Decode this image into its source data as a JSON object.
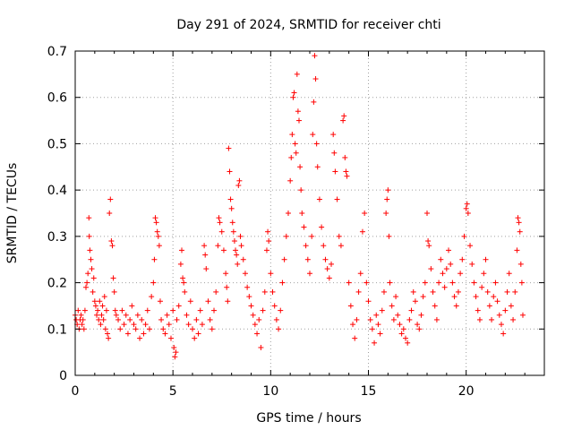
{
  "chart_data": {
    "type": "scatter",
    "title": "Day 291 of 2024, SRMTID for receiver chti",
    "xlabel": "GPS time / hours",
    "ylabel": "SRMTID / TECUs",
    "xlim": [
      0,
      24
    ],
    "ylim": [
      0,
      0.7
    ],
    "xticks": [
      0,
      5,
      10,
      15,
      20
    ],
    "xtick_labels": [
      "0",
      "5",
      "10",
      "15",
      "20"
    ],
    "yticks": [
      0,
      0.1,
      0.2,
      0.3,
      0.4,
      0.5,
      0.6,
      0.7
    ],
    "ytick_labels": [
      "0",
      "0.1",
      "0.2",
      "0.3",
      "0.4",
      "0.5",
      "0.6",
      "0.7"
    ],
    "grid": true,
    "marker": "+",
    "color": "#ff0000",
    "series": [
      {
        "name": "SRMTID",
        "points": [
          [
            0.0,
            0.13
          ],
          [
            0.05,
            0.12
          ],
          [
            0.1,
            0.11
          ],
          [
            0.15,
            0.14
          ],
          [
            0.2,
            0.1
          ],
          [
            0.25,
            0.12
          ],
          [
            0.3,
            0.13
          ],
          [
            0.35,
            0.11
          ],
          [
            0.4,
            0.12
          ],
          [
            0.45,
            0.1
          ],
          [
            0.5,
            0.14
          ],
          [
            0.55,
            0.19
          ],
          [
            0.6,
            0.2
          ],
          [
            0.65,
            0.22
          ],
          [
            0.7,
            0.34
          ],
          [
            0.72,
            0.3
          ],
          [
            0.75,
            0.27
          ],
          [
            0.8,
            0.25
          ],
          [
            0.85,
            0.23
          ],
          [
            0.9,
            0.18
          ],
          [
            0.95,
            0.21
          ],
          [
            1.0,
            0.16
          ],
          [
            1.05,
            0.15
          ],
          [
            1.1,
            0.13
          ],
          [
            1.15,
            0.14
          ],
          [
            1.2,
            0.12
          ],
          [
            1.25,
            0.16
          ],
          [
            1.3,
            0.11
          ],
          [
            1.35,
            0.13
          ],
          [
            1.4,
            0.15
          ],
          [
            1.45,
            0.12
          ],
          [
            1.5,
            0.17
          ],
          [
            1.55,
            0.1
          ],
          [
            1.6,
            0.14
          ],
          [
            1.65,
            0.09
          ],
          [
            1.7,
            0.08
          ],
          [
            1.75,
            0.35
          ],
          [
            1.8,
            0.38
          ],
          [
            1.85,
            0.29
          ],
          [
            1.9,
            0.28
          ],
          [
            1.95,
            0.21
          ],
          [
            2.0,
            0.18
          ],
          [
            2.05,
            0.14
          ],
          [
            2.1,
            0.13
          ],
          [
            2.2,
            0.12
          ],
          [
            2.3,
            0.1
          ],
          [
            2.4,
            0.14
          ],
          [
            2.5,
            0.11
          ],
          [
            2.6,
            0.13
          ],
          [
            2.7,
            0.09
          ],
          [
            2.8,
            0.12
          ],
          [
            2.9,
            0.15
          ],
          [
            3.0,
            0.11
          ],
          [
            3.1,
            0.1
          ],
          [
            3.2,
            0.13
          ],
          [
            3.3,
            0.08
          ],
          [
            3.4,
            0.12
          ],
          [
            3.5,
            0.09
          ],
          [
            3.6,
            0.11
          ],
          [
            3.7,
            0.14
          ],
          [
            3.8,
            0.1
          ],
          [
            3.9,
            0.17
          ],
          [
            4.0,
            0.2
          ],
          [
            4.05,
            0.25
          ],
          [
            4.1,
            0.34
          ],
          [
            4.15,
            0.33
          ],
          [
            4.2,
            0.31
          ],
          [
            4.25,
            0.3
          ],
          [
            4.3,
            0.28
          ],
          [
            4.35,
            0.16
          ],
          [
            4.4,
            0.12
          ],
          [
            4.5,
            0.1
          ],
          [
            4.6,
            0.09
          ],
          [
            4.7,
            0.13
          ],
          [
            4.8,
            0.11
          ],
          [
            4.9,
            0.08
          ],
          [
            5.0,
            0.14
          ],
          [
            5.05,
            0.06
          ],
          [
            5.1,
            0.04
          ],
          [
            5.15,
            0.05
          ],
          [
            5.2,
            0.12
          ],
          [
            5.3,
            0.15
          ],
          [
            5.4,
            0.24
          ],
          [
            5.45,
            0.27
          ],
          [
            5.5,
            0.21
          ],
          [
            5.55,
            0.2
          ],
          [
            5.6,
            0.18
          ],
          [
            5.7,
            0.13
          ],
          [
            5.8,
            0.11
          ],
          [
            5.9,
            0.16
          ],
          [
            6.0,
            0.1
          ],
          [
            6.1,
            0.08
          ],
          [
            6.2,
            0.12
          ],
          [
            6.3,
            0.09
          ],
          [
            6.4,
            0.14
          ],
          [
            6.5,
            0.11
          ],
          [
            6.6,
            0.28
          ],
          [
            6.65,
            0.26
          ],
          [
            6.7,
            0.23
          ],
          [
            6.8,
            0.16
          ],
          [
            6.9,
            0.12
          ],
          [
            7.0,
            0.1
          ],
          [
            7.1,
            0.14
          ],
          [
            7.2,
            0.18
          ],
          [
            7.3,
            0.28
          ],
          [
            7.35,
            0.34
          ],
          [
            7.4,
            0.33
          ],
          [
            7.5,
            0.31
          ],
          [
            7.6,
            0.27
          ],
          [
            7.7,
            0.22
          ],
          [
            7.75,
            0.19
          ],
          [
            7.8,
            0.16
          ],
          [
            7.85,
            0.49
          ],
          [
            7.9,
            0.44
          ],
          [
            7.95,
            0.38
          ],
          [
            8.0,
            0.36
          ],
          [
            8.05,
            0.33
          ],
          [
            8.1,
            0.31
          ],
          [
            8.15,
            0.29
          ],
          [
            8.2,
            0.27
          ],
          [
            8.25,
            0.26
          ],
          [
            8.3,
            0.24
          ],
          [
            8.35,
            0.41
          ],
          [
            8.4,
            0.42
          ],
          [
            8.45,
            0.3
          ],
          [
            8.5,
            0.28
          ],
          [
            8.6,
            0.25
          ],
          [
            8.7,
            0.22
          ],
          [
            8.8,
            0.19
          ],
          [
            8.9,
            0.17
          ],
          [
            9.0,
            0.15
          ],
          [
            9.1,
            0.13
          ],
          [
            9.2,
            0.11
          ],
          [
            9.3,
            0.09
          ],
          [
            9.4,
            0.12
          ],
          [
            9.5,
            0.06
          ],
          [
            9.6,
            0.14
          ],
          [
            9.7,
            0.18
          ],
          [
            9.8,
            0.27
          ],
          [
            9.85,
            0.31
          ],
          [
            9.9,
            0.29
          ],
          [
            10.0,
            0.22
          ],
          [
            10.1,
            0.18
          ],
          [
            10.2,
            0.15
          ],
          [
            10.3,
            0.12
          ],
          [
            10.4,
            0.1
          ],
          [
            10.5,
            0.14
          ],
          [
            10.6,
            0.2
          ],
          [
            10.7,
            0.25
          ],
          [
            10.8,
            0.3
          ],
          [
            10.9,
            0.35
          ],
          [
            11.0,
            0.42
          ],
          [
            11.05,
            0.47
          ],
          [
            11.1,
            0.52
          ],
          [
            11.15,
            0.6
          ],
          [
            11.2,
            0.61
          ],
          [
            11.25,
            0.5
          ],
          [
            11.3,
            0.48
          ],
          [
            11.35,
            0.65
          ],
          [
            11.4,
            0.57
          ],
          [
            11.45,
            0.55
          ],
          [
            11.5,
            0.45
          ],
          [
            11.55,
            0.4
          ],
          [
            11.6,
            0.35
          ],
          [
            11.7,
            0.32
          ],
          [
            11.8,
            0.28
          ],
          [
            11.9,
            0.25
          ],
          [
            12.0,
            0.22
          ],
          [
            12.1,
            0.3
          ],
          [
            12.15,
            0.52
          ],
          [
            12.2,
            0.59
          ],
          [
            12.25,
            0.69
          ],
          [
            12.3,
            0.64
          ],
          [
            12.35,
            0.5
          ],
          [
            12.4,
            0.45
          ],
          [
            12.5,
            0.38
          ],
          [
            12.6,
            0.32
          ],
          [
            12.7,
            0.28
          ],
          [
            12.8,
            0.25
          ],
          [
            12.9,
            0.23
          ],
          [
            13.0,
            0.21
          ],
          [
            13.1,
            0.24
          ],
          [
            13.2,
            0.52
          ],
          [
            13.25,
            0.48
          ],
          [
            13.3,
            0.44
          ],
          [
            13.4,
            0.38
          ],
          [
            13.5,
            0.3
          ],
          [
            13.6,
            0.28
          ],
          [
            13.7,
            0.55
          ],
          [
            13.75,
            0.56
          ],
          [
            13.8,
            0.47
          ],
          [
            13.85,
            0.44
          ],
          [
            13.9,
            0.43
          ],
          [
            14.0,
            0.2
          ],
          [
            14.1,
            0.15
          ],
          [
            14.2,
            0.11
          ],
          [
            14.3,
            0.08
          ],
          [
            14.4,
            0.12
          ],
          [
            14.5,
            0.18
          ],
          [
            14.6,
            0.22
          ],
          [
            14.7,
            0.31
          ],
          [
            14.8,
            0.35
          ],
          [
            14.9,
            0.2
          ],
          [
            15.0,
            0.16
          ],
          [
            15.1,
            0.12
          ],
          [
            15.2,
            0.1
          ],
          [
            15.3,
            0.07
          ],
          [
            15.4,
            0.13
          ],
          [
            15.5,
            0.11
          ],
          [
            15.6,
            0.09
          ],
          [
            15.7,
            0.14
          ],
          [
            15.8,
            0.18
          ],
          [
            15.9,
            0.35
          ],
          [
            15.95,
            0.38
          ],
          [
            16.0,
            0.4
          ],
          [
            16.05,
            0.3
          ],
          [
            16.1,
            0.2
          ],
          [
            16.2,
            0.15
          ],
          [
            16.3,
            0.12
          ],
          [
            16.4,
            0.17
          ],
          [
            16.5,
            0.13
          ],
          [
            16.6,
            0.11
          ],
          [
            16.7,
            0.09
          ],
          [
            16.8,
            0.1
          ],
          [
            16.9,
            0.08
          ],
          [
            17.0,
            0.07
          ],
          [
            17.1,
            0.12
          ],
          [
            17.2,
            0.14
          ],
          [
            17.3,
            0.18
          ],
          [
            17.4,
            0.16
          ],
          [
            17.5,
            0.11
          ],
          [
            17.6,
            0.1
          ],
          [
            17.7,
            0.13
          ],
          [
            17.8,
            0.17
          ],
          [
            17.9,
            0.2
          ],
          [
            18.0,
            0.35
          ],
          [
            18.05,
            0.29
          ],
          [
            18.1,
            0.28
          ],
          [
            18.2,
            0.23
          ],
          [
            18.3,
            0.18
          ],
          [
            18.4,
            0.15
          ],
          [
            18.5,
            0.12
          ],
          [
            18.6,
            0.2
          ],
          [
            18.7,
            0.25
          ],
          [
            18.8,
            0.22
          ],
          [
            18.9,
            0.19
          ],
          [
            19.0,
            0.23
          ],
          [
            19.1,
            0.27
          ],
          [
            19.2,
            0.24
          ],
          [
            19.3,
            0.2
          ],
          [
            19.4,
            0.17
          ],
          [
            19.5,
            0.15
          ],
          [
            19.6,
            0.18
          ],
          [
            19.7,
            0.22
          ],
          [
            19.8,
            0.25
          ],
          [
            19.9,
            0.3
          ],
          [
            20.0,
            0.36
          ],
          [
            20.05,
            0.37
          ],
          [
            20.1,
            0.35
          ],
          [
            20.2,
            0.28
          ],
          [
            20.3,
            0.24
          ],
          [
            20.4,
            0.2
          ],
          [
            20.5,
            0.17
          ],
          [
            20.6,
            0.14
          ],
          [
            20.7,
            0.12
          ],
          [
            20.8,
            0.19
          ],
          [
            20.9,
            0.22
          ],
          [
            21.0,
            0.25
          ],
          [
            21.1,
            0.18
          ],
          [
            21.2,
            0.15
          ],
          [
            21.3,
            0.12
          ],
          [
            21.4,
            0.17
          ],
          [
            21.5,
            0.2
          ],
          [
            21.6,
            0.16
          ],
          [
            21.7,
            0.13
          ],
          [
            21.8,
            0.11
          ],
          [
            21.9,
            0.09
          ],
          [
            22.0,
            0.14
          ],
          [
            22.1,
            0.18
          ],
          [
            22.2,
            0.22
          ],
          [
            22.3,
            0.15
          ],
          [
            22.4,
            0.12
          ],
          [
            22.5,
            0.18
          ],
          [
            22.6,
            0.27
          ],
          [
            22.65,
            0.34
          ],
          [
            22.7,
            0.33
          ],
          [
            22.75,
            0.31
          ],
          [
            22.8,
            0.24
          ],
          [
            22.85,
            0.2
          ],
          [
            22.9,
            0.13
          ]
        ]
      }
    ]
  }
}
